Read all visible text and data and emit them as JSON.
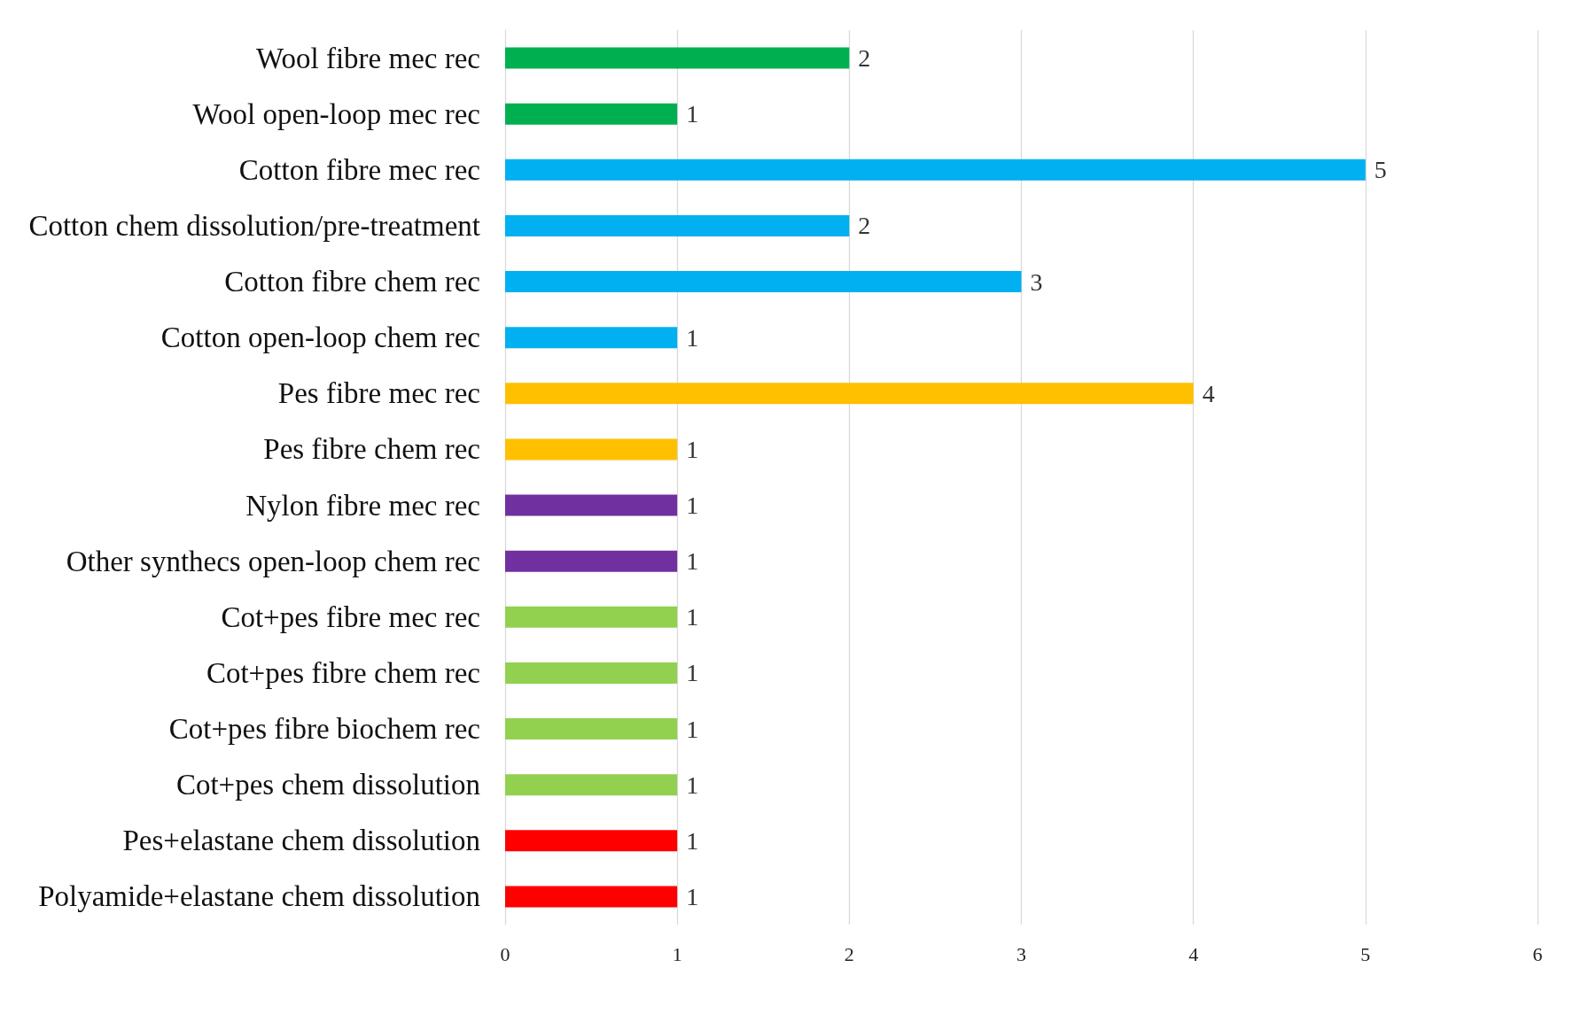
{
  "chart_data": {
    "type": "bar",
    "orientation": "horizontal",
    "categories": [
      "Wool fibre mec rec",
      "Wool open-loop mec rec",
      "Cotton fibre mec rec",
      "Cotton chem dissolution/pre-treatment",
      "Cotton fibre chem rec",
      "Cotton open-loop chem rec",
      "Pes fibre mec rec",
      "Pes fibre chem rec",
      "Nylon fibre mec rec",
      "Other synthecs open-loop chem rec",
      "Cot+pes fibre mec rec",
      "Cot+pes fibre chem rec",
      "Cot+pes fibre biochem rec",
      "Cot+pes chem dissolution",
      "Pes+elastane chem dissolution",
      "Polyamide+elastane chem dissolution"
    ],
    "values": [
      2,
      1,
      5,
      2,
      3,
      1,
      4,
      1,
      1,
      1,
      1,
      1,
      1,
      1,
      1,
      1
    ],
    "colors": [
      "#00b050",
      "#00b050",
      "#00b0f0",
      "#00b0f0",
      "#00b0f0",
      "#00b0f0",
      "#ffc000",
      "#ffc000",
      "#7030a0",
      "#7030a0",
      "#92d050",
      "#92d050",
      "#92d050",
      "#92d050",
      "#ff0000",
      "#ff0000"
    ],
    "xlim": [
      0,
      6
    ],
    "xticks": [
      0,
      1,
      2,
      3,
      4,
      5,
      6
    ],
    "grid": "x",
    "data_labels": true
  }
}
